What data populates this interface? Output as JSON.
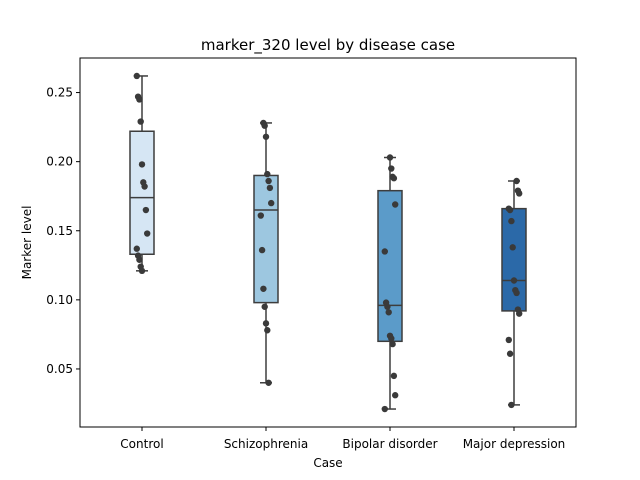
{
  "chart_data": {
    "type": "box",
    "title": "marker_320 level by disease case",
    "xlabel": "Case",
    "ylabel": "Marker level",
    "ylim": [
      0.008,
      0.275
    ],
    "yticks": [
      0.05,
      0.1,
      0.15,
      0.2,
      0.25
    ],
    "ytick_labels": [
      "0.05",
      "0.10",
      "0.15",
      "0.20",
      "0.25"
    ],
    "grid": false,
    "legend": "none",
    "categories": [
      "Control",
      "Schizophrenia",
      "Bipolar disorder",
      "Major depression"
    ],
    "colors": [
      "#d6e6f4",
      "#9dc7e0",
      "#5b9bc9",
      "#2b69a8"
    ],
    "boxes": [
      {
        "min": 0.121,
        "q1": 0.133,
        "median": 0.174,
        "q3": 0.222,
        "max": 0.262
      },
      {
        "min": 0.04,
        "q1": 0.098,
        "median": 0.165,
        "q3": 0.19,
        "max": 0.228
      },
      {
        "min": 0.021,
        "q1": 0.07,
        "median": 0.096,
        "q3": 0.179,
        "max": 0.203
      },
      {
        "min": 0.024,
        "q1": 0.092,
        "median": 0.114,
        "q3": 0.166,
        "max": 0.186
      }
    ],
    "points": [
      [
        0.262,
        0.247,
        0.245,
        0.229,
        0.198,
        0.185,
        0.182,
        0.165,
        0.148,
        0.137,
        0.132,
        0.129,
        0.124,
        0.121
      ],
      [
        0.228,
        0.226,
        0.218,
        0.191,
        0.186,
        0.181,
        0.17,
        0.161,
        0.136,
        0.108,
        0.095,
        0.083,
        0.078,
        0.04
      ],
      [
        0.203,
        0.195,
        0.189,
        0.188,
        0.169,
        0.135,
        0.098,
        0.095,
        0.091,
        0.074,
        0.072,
        0.068,
        0.045,
        0.031,
        0.021
      ],
      [
        0.186,
        0.179,
        0.177,
        0.166,
        0.165,
        0.157,
        0.138,
        0.114,
        0.107,
        0.105,
        0.093,
        0.09,
        0.071,
        0.061,
        0.024
      ]
    ]
  }
}
